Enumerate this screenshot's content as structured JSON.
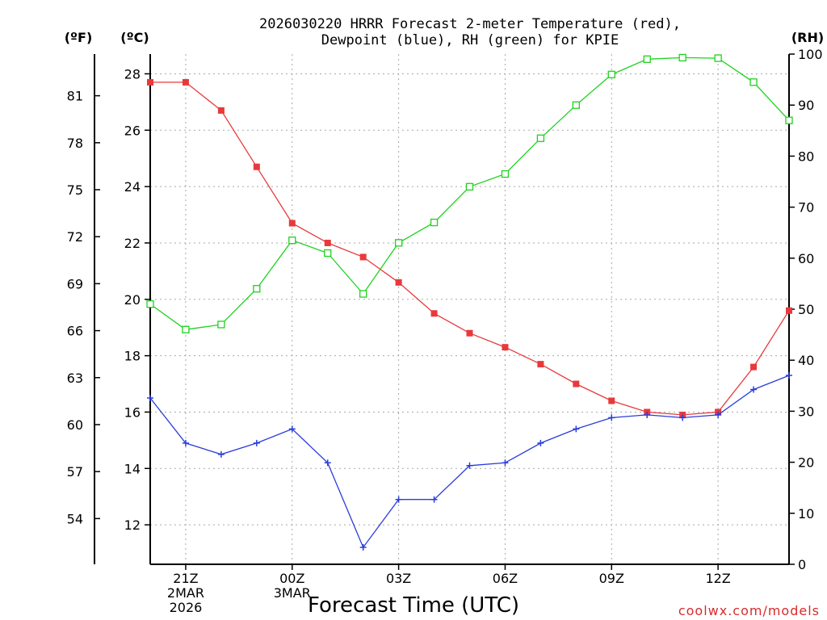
{
  "chart_data": {
    "type": "line",
    "title_lines": [
      "2026030220 HRRR Forecast 2-meter Temperature (red),",
      "Dewpoint (blue), RH (green) for KPIE"
    ],
    "xlabel": "Forecast Time (UTC)",
    "credit": "coolwx.com/models",
    "units": {
      "fahrenheit": "(ºF)",
      "celsius": "(ºC)",
      "rh": "(RH)"
    },
    "x_hours": [
      0,
      1,
      2,
      3,
      4,
      5,
      6,
      7,
      8,
      9,
      10,
      11,
      12,
      13,
      14,
      15,
      16,
      17,
      18
    ],
    "x_ticks": [
      {
        "hour": 1,
        "lines": [
          "21Z",
          "2MAR",
          "2026"
        ]
      },
      {
        "hour": 4,
        "lines": [
          "00Z",
          "3MAR"
        ]
      },
      {
        "hour": 7,
        "lines": [
          "03Z"
        ]
      },
      {
        "hour": 10,
        "lines": [
          "06Z"
        ]
      },
      {
        "hour": 13,
        "lines": [
          "09Z"
        ]
      },
      {
        "hour": 16,
        "lines": [
          "12Z"
        ]
      }
    ],
    "celsius_axis": {
      "min": 10.6,
      "max": 28.7,
      "ticks": [
        12,
        14,
        16,
        18,
        20,
        22,
        24,
        26,
        28
      ]
    },
    "fahrenheit_ticks": [
      54,
      57,
      60,
      63,
      66,
      69,
      72,
      75,
      78,
      81
    ],
    "rh_axis": {
      "min": 0,
      "max": 100,
      "ticks": [
        0,
        10,
        20,
        30,
        40,
        50,
        60,
        70,
        80,
        90,
        100
      ]
    },
    "series": [
      {
        "name": "Temperature",
        "axis": "celsius",
        "color": "#e8393b",
        "marker": "filled-square",
        "values": [
          27.7,
          27.7,
          26.7,
          24.7,
          22.7,
          22.0,
          21.5,
          20.6,
          19.5,
          18.8,
          18.3,
          17.7,
          17.0,
          16.4,
          16.0,
          15.9,
          16.0,
          17.6,
          19.6
        ]
      },
      {
        "name": "Dewpoint",
        "axis": "celsius",
        "color": "#2a3ddb",
        "marker": "plus",
        "values": [
          16.5,
          14.9,
          14.5,
          14.9,
          15.4,
          14.2,
          11.2,
          12.9,
          12.9,
          14.1,
          14.2,
          14.9,
          15.4,
          15.8,
          15.9,
          15.8,
          15.9,
          16.8,
          17.3
        ]
      },
      {
        "name": "RH",
        "axis": "rh",
        "color": "#1ed21e",
        "marker": "open-square",
        "values": [
          51,
          46,
          47,
          54,
          63.5,
          61,
          53,
          63,
          67,
          74,
          76.5,
          83.5,
          90,
          96,
          99,
          99.3,
          99.2,
          94.5,
          87
        ]
      }
    ]
  }
}
